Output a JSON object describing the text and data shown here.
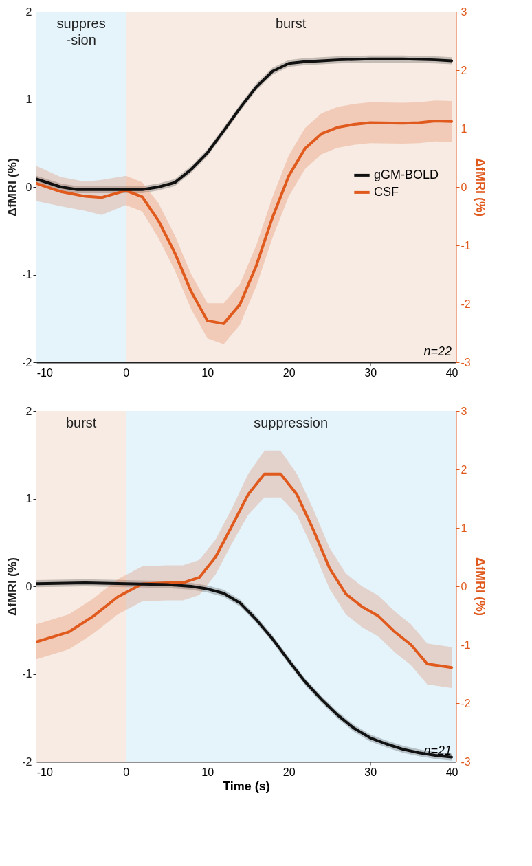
{
  "chart_data": [
    {
      "type": "line",
      "ylabel": "ΔfMRI (%)",
      "y2label": "ΔfMRI (%)",
      "xlim": [
        -11,
        40.5
      ],
      "xticks": [
        -10,
        0,
        10,
        20,
        30,
        40
      ],
      "ylim": [
        -2,
        2
      ],
      "yticks": [
        -2,
        -1,
        0,
        1,
        2
      ],
      "y2lim": [
        -3,
        3
      ],
      "y2ticks": [
        -3,
        -2,
        -1,
        0,
        1,
        2,
        3
      ],
      "grid": false,
      "legend": "right",
      "annotations": [
        "n=22"
      ],
      "bands": [
        {
          "axis": "x",
          "from": -11,
          "to": 0,
          "label": "suppres\n-sion",
          "color": "#e5f4fb"
        },
        {
          "axis": "x",
          "from": 0,
          "to": 40.5,
          "label": "burst",
          "color": "#f7ebe3"
        }
      ],
      "series": [
        {
          "name": "gGM-BOLD",
          "color": "#111111",
          "x": [
            -11,
            -8,
            -6,
            -4,
            -2,
            0,
            2,
            4,
            6,
            8,
            10,
            12,
            14,
            16,
            18,
            20,
            22,
            24,
            26,
            30,
            34,
            38,
            40
          ],
          "values": [
            0.09,
            0,
            -0.03,
            -0.03,
            -0.03,
            -0.03,
            -0.03,
            0,
            0.05,
            0.2,
            0.39,
            0.64,
            0.9,
            1.14,
            1.32,
            1.41,
            1.43,
            1.44,
            1.45,
            1.46,
            1.46,
            1.45,
            1.44
          ],
          "lower": [
            0.05,
            -0.04,
            -0.07,
            -0.07,
            -0.07,
            -0.07,
            -0.07,
            -0.04,
            0.01,
            0.16,
            0.35,
            0.6,
            0.86,
            1.1,
            1.28,
            1.37,
            1.39,
            1.4,
            1.41,
            1.42,
            1.42,
            1.41,
            1.4
          ],
          "upper": [
            0.13,
            0.04,
            0.01,
            0.01,
            0.01,
            0.01,
            0.01,
            0.04,
            0.09,
            0.24,
            0.43,
            0.68,
            0.94,
            1.18,
            1.36,
            1.45,
            1.47,
            1.48,
            1.49,
            1.5,
            1.5,
            1.49,
            1.48
          ]
        },
        {
          "name": "CSF",
          "color": "#e05a1e",
          "axis": "y2",
          "x": [
            -11,
            -8,
            -5,
            -3,
            0,
            2,
            4,
            6,
            8,
            10,
            12,
            14,
            16,
            18,
            20,
            22,
            24,
            26,
            28,
            30,
            34,
            36,
            38,
            40
          ],
          "values": [
            0.06,
            -0.08,
            -0.16,
            -0.18,
            -0.06,
            -0.17,
            -0.58,
            -1.13,
            -1.79,
            -2.29,
            -2.34,
            -2.01,
            -1.35,
            -0.52,
            0.19,
            0.66,
            0.91,
            1.02,
            1.07,
            1.1,
            1.09,
            1.1,
            1.13,
            1.12
          ],
          "lower": [
            -0.24,
            -0.33,
            -0.41,
            -0.48,
            -0.31,
            -0.42,
            -0.88,
            -1.43,
            -2.09,
            -2.59,
            -2.69,
            -2.36,
            -1.7,
            -0.87,
            -0.16,
            0.31,
            0.56,
            0.67,
            0.72,
            0.75,
            0.74,
            0.75,
            0.78,
            0.77
          ],
          "upper": [
            0.36,
            0.17,
            0.09,
            0.12,
            0.19,
            0.08,
            -0.28,
            -0.83,
            -1.49,
            -1.99,
            -1.99,
            -1.66,
            -1.0,
            -0.17,
            0.54,
            1.01,
            1.26,
            1.37,
            1.42,
            1.45,
            1.44,
            1.45,
            1.48,
            1.47
          ]
        }
      ]
    },
    {
      "type": "line",
      "xlabel": "Time (s)",
      "ylabel": "ΔfMRI (%)",
      "y2label": "ΔfMRI (%)",
      "xlim": [
        -11,
        40.5
      ],
      "xticks": [
        -10,
        0,
        10,
        20,
        30,
        40
      ],
      "ylim": [
        -2,
        2
      ],
      "yticks": [
        -2,
        -1,
        0,
        1,
        2
      ],
      "y2lim": [
        -3,
        3
      ],
      "y2ticks": [
        -3,
        -2,
        -1,
        0,
        1,
        2,
        3
      ],
      "grid": false,
      "annotations": [
        "n=21"
      ],
      "bands": [
        {
          "axis": "x",
          "from": -11,
          "to": 0,
          "label": "burst",
          "color": "#f7ebe3"
        },
        {
          "axis": "x",
          "from": 0,
          "to": 40.5,
          "label": "suppression",
          "color": "#e5f4fb"
        }
      ],
      "series": [
        {
          "color": "#111111",
          "x": [
            -11,
            -5,
            0,
            5,
            8,
            10,
            12,
            14,
            16,
            18,
            20,
            22,
            24,
            26,
            28,
            30,
            32,
            34,
            36,
            38,
            40
          ],
          "values": [
            0.03,
            0.04,
            0.03,
            0.02,
            0,
            -0.03,
            -0.08,
            -0.19,
            -0.38,
            -0.6,
            -0.85,
            -1.09,
            -1.29,
            -1.47,
            -1.62,
            -1.73,
            -1.8,
            -1.86,
            -1.9,
            -1.93,
            -1.95
          ],
          "lower": [
            -0.01,
            0,
            -0.01,
            -0.02,
            -0.04,
            -0.07,
            -0.12,
            -0.23,
            -0.42,
            -0.64,
            -0.89,
            -1.13,
            -1.33,
            -1.51,
            -1.66,
            -1.77,
            -1.84,
            -1.9,
            -1.94,
            -1.97,
            -1.99
          ],
          "upper": [
            0.07,
            0.08,
            0.07,
            0.06,
            0.04,
            0.01,
            -0.04,
            -0.15,
            -0.34,
            -0.56,
            -0.81,
            -1.05,
            -1.25,
            -1.43,
            -1.58,
            -1.69,
            -1.76,
            -1.82,
            -1.86,
            -1.89,
            -1.91
          ]
        },
        {
          "color": "#e05a1e",
          "axis": "y2",
          "x": [
            -11,
            -7,
            -4,
            -1,
            2,
            5,
            7,
            9,
            11,
            13,
            15,
            17,
            19,
            21,
            23,
            25,
            27,
            29,
            31,
            33,
            35,
            37,
            39,
            40
          ],
          "values": [
            -0.95,
            -0.78,
            -0.51,
            -0.18,
            0.04,
            0.06,
            0.06,
            0.15,
            0.5,
            1.03,
            1.57,
            1.92,
            1.92,
            1.57,
            0.97,
            0.31,
            -0.13,
            -0.35,
            -0.51,
            -0.78,
            -1.0,
            -1.33,
            -1.37,
            -1.39
          ],
          "lower": [
            -1.25,
            -1.08,
            -0.81,
            -0.48,
            -0.26,
            -0.24,
            -0.24,
            -0.15,
            0.2,
            0.73,
            1.22,
            1.52,
            1.52,
            1.22,
            0.62,
            -0.04,
            -0.48,
            -0.7,
            -0.86,
            -1.13,
            -1.35,
            -1.68,
            -1.72,
            -1.74
          ],
          "upper": [
            -0.65,
            -0.48,
            -0.21,
            0.12,
            0.34,
            0.36,
            0.36,
            0.45,
            0.8,
            1.33,
            1.92,
            2.32,
            2.32,
            1.92,
            1.32,
            0.66,
            0.22,
            0.0,
            -0.16,
            -0.43,
            -0.65,
            -0.98,
            -1.02,
            -1.04
          ]
        }
      ]
    }
  ]
}
